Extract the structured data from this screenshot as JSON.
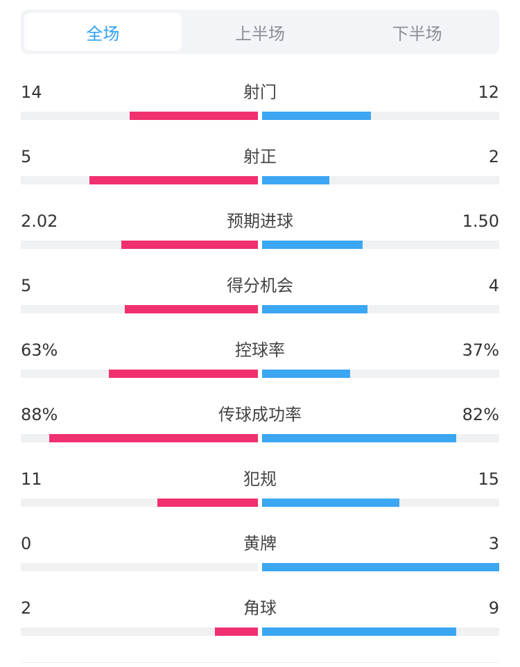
{
  "tabs": [
    {
      "label": "全场",
      "active": true
    },
    {
      "label": "上半场",
      "active": false
    },
    {
      "label": "下半场",
      "active": false
    }
  ],
  "colors": {
    "home": "#f0306f",
    "away": "#3ba6f2",
    "active_tab": "#2ea0f0"
  },
  "stats": [
    {
      "label": "射门",
      "home": "14",
      "away": "12",
      "home_frac": 0.54,
      "away_frac": 0.46
    },
    {
      "label": "射正",
      "home": "5",
      "away": "2",
      "home_frac": 0.71,
      "away_frac": 0.285
    },
    {
      "label": "预期进球",
      "home": "2.02",
      "away": "1.50",
      "home_frac": 0.575,
      "away_frac": 0.425
    },
    {
      "label": "得分机会",
      "home": "5",
      "away": "4",
      "home_frac": 0.56,
      "away_frac": 0.445
    },
    {
      "label": "控球率",
      "home": "63%",
      "away": "37%",
      "home_frac": 0.63,
      "away_frac": 0.37
    },
    {
      "label": "传球成功率",
      "home": "88%",
      "away": "82%",
      "home_frac": 0.88,
      "away_frac": 0.82
    },
    {
      "label": "犯规",
      "home": "11",
      "away": "15",
      "home_frac": 0.425,
      "away_frac": 0.58
    },
    {
      "label": "黄牌",
      "home": "0",
      "away": "3",
      "home_frac": 0.0,
      "away_frac": 1.0
    },
    {
      "label": "角球",
      "home": "2",
      "away": "9",
      "home_frac": 0.18,
      "away_frac": 0.82
    }
  ]
}
